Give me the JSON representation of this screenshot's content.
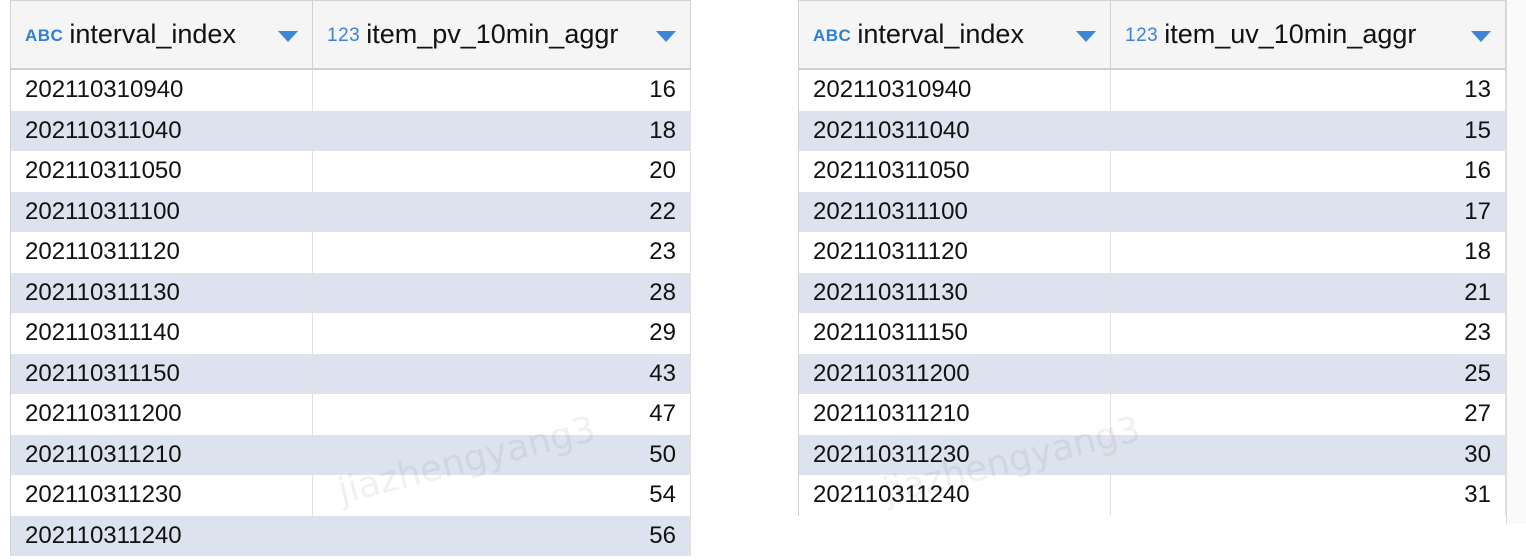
{
  "left_table": {
    "columns": [
      {
        "type_badge": "ABC",
        "name": "interval_index"
      },
      {
        "type_badge": "123",
        "name": "item_pv_10min_aggr"
      }
    ],
    "rows": [
      [
        "202110310940",
        "16"
      ],
      [
        "202110311040",
        "18"
      ],
      [
        "202110311050",
        "20"
      ],
      [
        "202110311100",
        "22"
      ],
      [
        "202110311120",
        "23"
      ],
      [
        "202110311130",
        "28"
      ],
      [
        "202110311140",
        "29"
      ],
      [
        "202110311150",
        "43"
      ],
      [
        "202110311200",
        "47"
      ],
      [
        "202110311210",
        "50"
      ],
      [
        "202110311230",
        "54"
      ],
      [
        "202110311240",
        "56"
      ]
    ]
  },
  "right_table": {
    "columns": [
      {
        "type_badge": "ABC",
        "name": "interval_index"
      },
      {
        "type_badge": "123",
        "name": "item_uv_10min_aggr"
      }
    ],
    "rows": [
      [
        "202110310940",
        "13"
      ],
      [
        "202110311040",
        "15"
      ],
      [
        "202110311050",
        "16"
      ],
      [
        "202110311100",
        "17"
      ],
      [
        "202110311120",
        "18"
      ],
      [
        "202110311130",
        "21"
      ],
      [
        "202110311150",
        "23"
      ],
      [
        "202110311200",
        "25"
      ],
      [
        "202110311210",
        "27"
      ],
      [
        "202110311230",
        "30"
      ],
      [
        "202110311240",
        "31"
      ]
    ]
  },
  "icons": {
    "text_type": "abc-type-icon",
    "number_type": "number-type-icon",
    "sort": "sort-arrow-icon"
  },
  "colors": {
    "accent": "#3b86d6",
    "row_stripe": "#dde3ee",
    "header_bg": "#f5f5f5"
  },
  "watermark": "jiazhengyang3"
}
